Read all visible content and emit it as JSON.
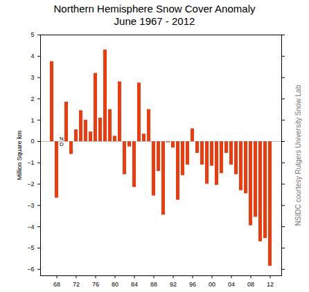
{
  "chart_data": {
    "type": "bar",
    "title": "Northern Hemisphere Snow Cover Anomaly",
    "subtitle": "June 1967 - 2012",
    "y_label": "Million Square km",
    "annotations": [
      "NSIDC courtesy Rutgers University Snow Lab"
    ],
    "categories": [
      null,
      "68",
      null,
      null,
      null,
      "72",
      null,
      null,
      null,
      "76",
      null,
      null,
      null,
      "80",
      null,
      null,
      null,
      "84",
      null,
      null,
      null,
      "88",
      null,
      null,
      null,
      "92",
      null,
      null,
      null,
      "96",
      null,
      null,
      null,
      "00",
      null,
      null,
      null,
      "04",
      null,
      null,
      null,
      "08",
      null,
      null,
      null,
      "12"
    ],
    "values": [
      3.75,
      -2.65,
      null,
      1.85,
      -0.6,
      0.55,
      1.45,
      1.0,
      0.45,
      3.2,
      1.1,
      4.3,
      1.5,
      0.25,
      2.8,
      -1.55,
      -0.25,
      -2.15,
      2.75,
      0.35,
      1.5,
      -2.55,
      -1.4,
      -3.45,
      -0.05,
      -0.3,
      -2.75,
      -1.6,
      -1.1,
      0.6,
      -0.55,
      -1.1,
      -2.0,
      -1.15,
      -2.05,
      -1.5,
      -0.55,
      -1.1,
      -1.55,
      -2.3,
      -2.45,
      -3.95,
      -3.55,
      -4.7,
      -4.55,
      -5.85
    ],
    "value_labels": [
      null,
      null,
      "ND",
      null,
      null,
      null,
      null,
      null,
      null,
      null,
      null,
      null,
      null,
      null,
      null,
      null,
      null,
      null,
      null,
      null,
      null,
      null,
      null,
      null,
      null,
      null,
      null,
      null,
      null,
      null,
      null,
      null,
      null,
      null,
      null,
      null,
      null,
      null,
      null,
      null,
      null,
      null,
      null,
      null,
      null,
      null
    ],
    "color": "#ee3a0c",
    "ylim": [
      -6.3,
      5
    ],
    "yticks": [
      -6,
      -5,
      -4,
      -3,
      -2,
      -1,
      0,
      1,
      2,
      3,
      4,
      5
    ],
    "grid": false
  }
}
